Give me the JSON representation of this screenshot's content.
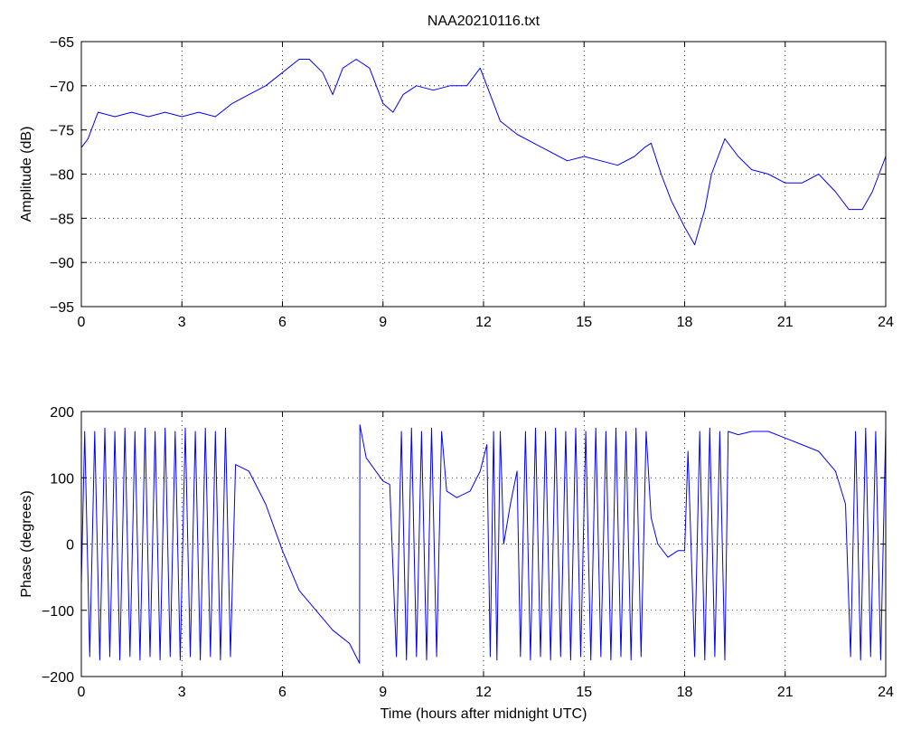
{
  "figure_title": "NAA20210116.txt",
  "colors": {
    "series": "#0000ff",
    "axes": "#000000",
    "background": "#ffffff"
  },
  "chart_data": [
    {
      "type": "line",
      "title": "NAA20210116.txt",
      "xlabel": "",
      "ylabel": "Amplitude (dB)",
      "xlim": [
        0,
        24
      ],
      "ylim": [
        -95,
        -65
      ],
      "xticks": [
        0,
        3,
        6,
        9,
        12,
        15,
        18,
        21,
        24
      ],
      "yticks": [
        -95,
        -90,
        -85,
        -80,
        -75,
        -70,
        -65
      ],
      "grid": true,
      "legend": "none",
      "series": [
        {
          "x": [
            0,
            0.2,
            0.5,
            1.0,
            1.5,
            2.0,
            2.5,
            3.0,
            3.5,
            4.0,
            4.5,
            5.0,
            5.5,
            6.0,
            6.5,
            6.8,
            7.2,
            7.5,
            7.8,
            8.2,
            8.6,
            9.0,
            9.3,
            9.6,
            10.0,
            10.5,
            11.0,
            11.5,
            11.9,
            12.2,
            12.5,
            13.0,
            13.5,
            14.0,
            14.5,
            15.0,
            15.5,
            16.0,
            16.5,
            16.8,
            17.0,
            17.3,
            17.6,
            18.0,
            18.3,
            18.6,
            18.8,
            19.2,
            19.6,
            20.0,
            20.5,
            21.0,
            21.5,
            22.0,
            22.5,
            22.9,
            23.3,
            23.6,
            24.0
          ],
          "y": [
            -77,
            -76,
            -73,
            -73.5,
            -73,
            -73.5,
            -73,
            -73.5,
            -73,
            -73.5,
            -72,
            -71,
            -70,
            -68.5,
            -67,
            -67,
            -68.5,
            -71,
            -68,
            -67,
            -68,
            -72,
            -73,
            -71,
            -70,
            -70.5,
            -70,
            -70,
            -68,
            -71,
            -74,
            -75.5,
            -76.5,
            -77.5,
            -78.5,
            -78,
            -78.5,
            -79,
            -78,
            -77,
            -76.5,
            -80,
            -83,
            -86,
            -88,
            -84,
            -80,
            -76,
            -78,
            -79.5,
            -80,
            -81,
            -81,
            -80,
            -82,
            -84,
            -84,
            -82,
            -78
          ]
        }
      ]
    },
    {
      "type": "line",
      "title": "",
      "xlabel": "Time (hours after midnight UTC)",
      "ylabel": "Phase (degrees)",
      "xlim": [
        0,
        24
      ],
      "ylim": [
        -200,
        200
      ],
      "xticks": [
        0,
        3,
        6,
        9,
        12,
        15,
        18,
        21,
        24
      ],
      "yticks": [
        -200,
        -100,
        0,
        100,
        200
      ],
      "grid": true,
      "legend": "none",
      "series": [
        {
          "x": [
            0,
            0.1,
            0.25,
            0.4,
            0.55,
            0.7,
            0.85,
            1.0,
            1.15,
            1.3,
            1.45,
            1.6,
            1.75,
            1.9,
            2.05,
            2.2,
            2.35,
            2.5,
            2.65,
            2.8,
            2.95,
            3.1,
            3.25,
            3.4,
            3.55,
            3.7,
            3.85,
            4.0,
            4.15,
            4.3,
            4.45,
            4.6,
            5.0,
            5.5,
            6.0,
            6.5,
            7.0,
            7.5,
            8.0,
            8.3,
            8.31,
            8.5,
            9.0,
            9.2,
            9.4,
            9.55,
            9.7,
            9.85,
            10.0,
            10.15,
            10.3,
            10.45,
            10.6,
            10.75,
            10.9,
            11.2,
            11.6,
            11.9,
            12.1,
            12.2,
            12.3,
            12.4,
            12.5,
            12.6,
            12.8,
            13.0,
            13.1,
            13.25,
            13.4,
            13.55,
            13.7,
            13.85,
            14.0,
            14.15,
            14.3,
            14.45,
            14.6,
            14.75,
            14.9,
            15.05,
            15.2,
            15.35,
            15.5,
            15.65,
            15.8,
            15.95,
            16.1,
            16.25,
            16.4,
            16.55,
            16.7,
            16.85,
            17.0,
            17.2,
            17.5,
            17.8,
            18.0,
            18.1,
            18.3,
            18.45,
            18.6,
            18.75,
            18.9,
            19.05,
            19.2,
            19.3,
            19.6,
            20.0,
            20.5,
            21.0,
            21.5,
            22.0,
            22.5,
            22.8,
            22.95,
            23.1,
            23.25,
            23.4,
            23.55,
            23.7,
            23.85,
            24.0
          ],
          "y": [
            -60,
            170,
            -170,
            170,
            -175,
            175,
            -170,
            170,
            -175,
            175,
            -170,
            170,
            -175,
            175,
            -170,
            170,
            -175,
            175,
            -170,
            170,
            -175,
            175,
            -170,
            170,
            -175,
            175,
            -170,
            170,
            -175,
            175,
            -170,
            120,
            110,
            60,
            -10,
            -70,
            -100,
            -130,
            -150,
            -180,
            180,
            130,
            95,
            90,
            -170,
            170,
            -175,
            175,
            -170,
            170,
            -175,
            175,
            -170,
            170,
            80,
            70,
            80,
            110,
            150,
            -170,
            170,
            -175,
            170,
            0,
            60,
            110,
            -170,
            170,
            -175,
            175,
            -170,
            170,
            -175,
            175,
            -170,
            170,
            -175,
            175,
            -170,
            170,
            -175,
            175,
            -170,
            170,
            -175,
            175,
            -170,
            170,
            -175,
            175,
            -170,
            170,
            40,
            0,
            -20,
            -10,
            -10,
            140,
            -170,
            170,
            -175,
            175,
            -170,
            170,
            -175,
            170,
            165,
            170,
            170,
            160,
            150,
            140,
            110,
            60,
            -170,
            170,
            -175,
            175,
            -170,
            170,
            -175,
            175
          ]
        }
      ]
    }
  ]
}
